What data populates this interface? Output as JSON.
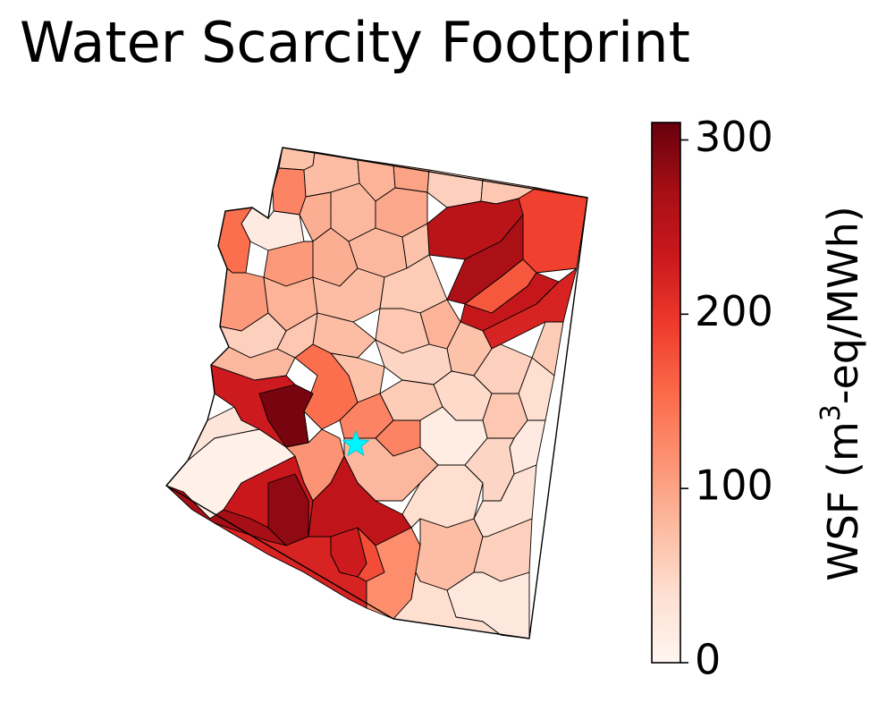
{
  "title": "Water Scarcity Footprint",
  "colorbar": {
    "label_main": "WSF (m",
    "label_sup": "3",
    "label_rest": "-eq/MWh)",
    "min": 0,
    "max": 310,
    "ticks": [
      {
        "value": 0,
        "label": "0"
      },
      {
        "value": 100,
        "label": "100"
      },
      {
        "value": 200,
        "label": "200"
      },
      {
        "value": 300,
        "label": "300"
      }
    ],
    "colormap": "Reds",
    "colormap_stops": [
      "#fff5f0",
      "#fee0d2",
      "#fcbba1",
      "#fc9272",
      "#fb6a4a",
      "#ef3b2c",
      "#cb181d",
      "#a50f15",
      "#67000d"
    ]
  },
  "marker": {
    "symbol": "star",
    "color": "#00f5ff"
  }
}
